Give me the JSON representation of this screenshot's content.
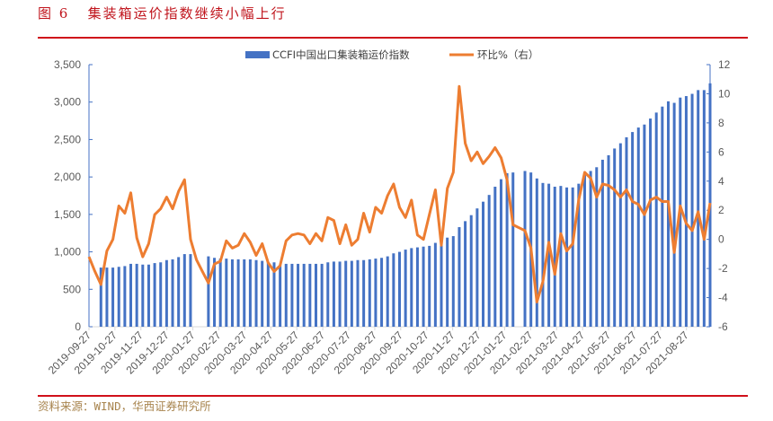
{
  "header": {
    "title": "图 6   集装箱运价指数继续小幅上行"
  },
  "footer": {
    "source": "资料来源：WIND，华西证券研究所"
  },
  "colors": {
    "bar": "#4472c4",
    "line": "#ed7d31",
    "title": "#c0141c",
    "rule": "#d0101a",
    "source": "#a8844e"
  },
  "chart_data": {
    "type": "bar+line",
    "title": "集装箱运价指数继续小幅上行",
    "x_tick_labels": [
      "2019-09-27",
      "2019-10-27",
      "2019-11-27",
      "2019-12-27",
      "2020-01-27",
      "2020-02-27",
      "2020-03-27",
      "2020-04-27",
      "2020-05-27",
      "2020-06-27",
      "2020-07-27",
      "2020-08-27",
      "2020-09-27",
      "2020-10-27",
      "2020-11-27",
      "2020-12-27",
      "2021-01-27",
      "2021-02-27",
      "2021-03-27",
      "2021-04-27",
      "2021-05-27",
      "2021-06-27",
      "2021-07-27",
      "2021-08-27"
    ],
    "left_axis": {
      "min": 0,
      "max": 3500,
      "step": 500,
      "tick_labels": [
        "0",
        "500",
        "1,000",
        "1,500",
        "2,000",
        "2,500",
        "3,000",
        "3,500"
      ]
    },
    "right_axis": {
      "min": -6,
      "max": 12,
      "step": 2,
      "tick_labels": [
        "-6",
        "-4",
        "-2",
        "0",
        "2",
        "4",
        "6",
        "8",
        "10",
        "12"
      ]
    },
    "legend_position": "top-center",
    "series": [
      {
        "name": "CCFI中国出口集装箱运价指数",
        "type": "bar",
        "axis": "left",
        "values": [
          null,
          null,
          790,
          790,
          790,
          800,
          810,
          840,
          840,
          830,
          830,
          850,
          860,
          890,
          900,
          930,
          970,
          970,
          null,
          null,
          940,
          920,
          910,
          910,
          900,
          900,
          900,
          900,
          890,
          880,
          860,
          860,
          820,
          840,
          840,
          840,
          840,
          840,
          840,
          840,
          860,
          870,
          870,
          880,
          880,
          890,
          890,
          900,
          910,
          920,
          940,
          980,
          1000,
          1030,
          1050,
          1060,
          1070,
          1080,
          1120,
          1150,
          1190,
          1210,
          1330,
          1410,
          1490,
          1580,
          1670,
          1760,
          1870,
          1970,
          2050,
          2060,
          null,
          2080,
          2060,
          1980,
          1920,
          1910,
          1870,
          1880,
          1860,
          1860,
          1910,
          2060,
          2080,
          2130,
          2230,
          2290,
          2380,
          2450,
          2530,
          2600,
          2660,
          2700,
          2780,
          2860,
          2940,
          3010,
          2990,
          3060,
          3080,
          3110,
          3160,
          3160,
          3250
        ]
      },
      {
        "name": "环比%（右）",
        "type": "line",
        "axis": "right",
        "values": [
          -1.2,
          -2.2,
          -3.1,
          -0.8,
          0.0,
          2.3,
          1.8,
          3.2,
          0.1,
          -1.2,
          -0.3,
          1.7,
          2.1,
          2.9,
          2.1,
          3.3,
          4.1,
          0.0,
          -1.4,
          -2.2,
          -3.0,
          -1.7,
          -1.5,
          -0.1,
          -0.6,
          -0.4,
          0.4,
          -0.2,
          -1.1,
          -0.3,
          -1.6,
          -2.2,
          -1.8,
          -0.1,
          0.3,
          0.4,
          0.3,
          -0.3,
          0.4,
          -0.1,
          1.5,
          1.3,
          -0.3,
          1.0,
          -0.4,
          0.0,
          1.8,
          0.5,
          2.2,
          1.8,
          3.0,
          3.8,
          2.2,
          1.5,
          2.7,
          0.3,
          0.0,
          1.7,
          3.4,
          -0.4,
          3.5,
          4.6,
          10.5,
          6.6,
          5.4,
          6.0,
          5.2,
          5.7,
          6.3,
          5.6,
          4.1,
          1.0,
          0.8,
          0.6,
          -0.6,
          -4.3,
          -2.9,
          -0.2,
          -2.4,
          0.4,
          -0.8,
          -0.3,
          2.7,
          4.6,
          4.2,
          2.9,
          3.8,
          3.7,
          3.4,
          2.9,
          3.4,
          2.6,
          2.4,
          1.7,
          2.7,
          2.9,
          2.6,
          2.6,
          -0.9,
          2.3,
          1.1,
          0.6,
          1.9,
          0.0,
          2.5
        ]
      }
    ]
  }
}
